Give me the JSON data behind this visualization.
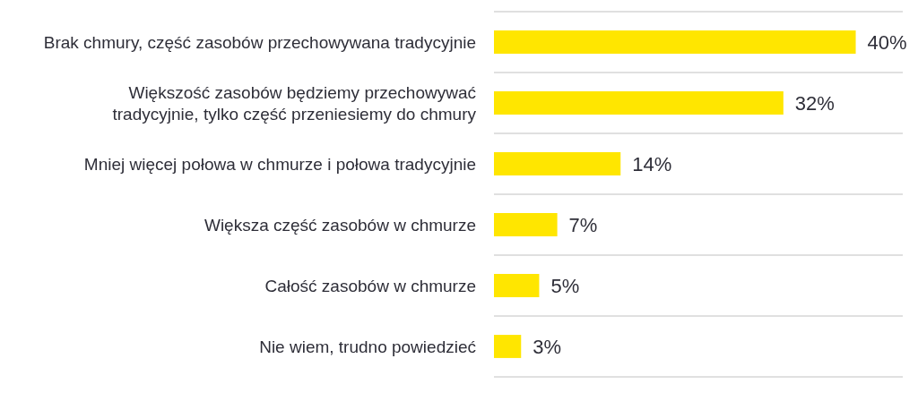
{
  "chart_data": {
    "type": "bar",
    "orientation": "horizontal",
    "categories": [
      "Brak chmury, część zasobów przechowywana tradycyjnie",
      "Większość zasobów będziemy przechowywać tradycyjnie, tylko część przeniesiemy do chmury",
      "Mniej więcej połowa w chmurze i połowa tradycyjnie",
      "Większa część zasobów w chmurze",
      "Całość zasobów w chmurze",
      "Nie wiem, trudno powiedzieć"
    ],
    "values": [
      40,
      32,
      14,
      7,
      5,
      3
    ],
    "value_labels": [
      "40%",
      "32%",
      "14%",
      "7%",
      "5%",
      "3%"
    ],
    "color": "#ffe600",
    "grid": "y",
    "tick_labels": "y"
  }
}
